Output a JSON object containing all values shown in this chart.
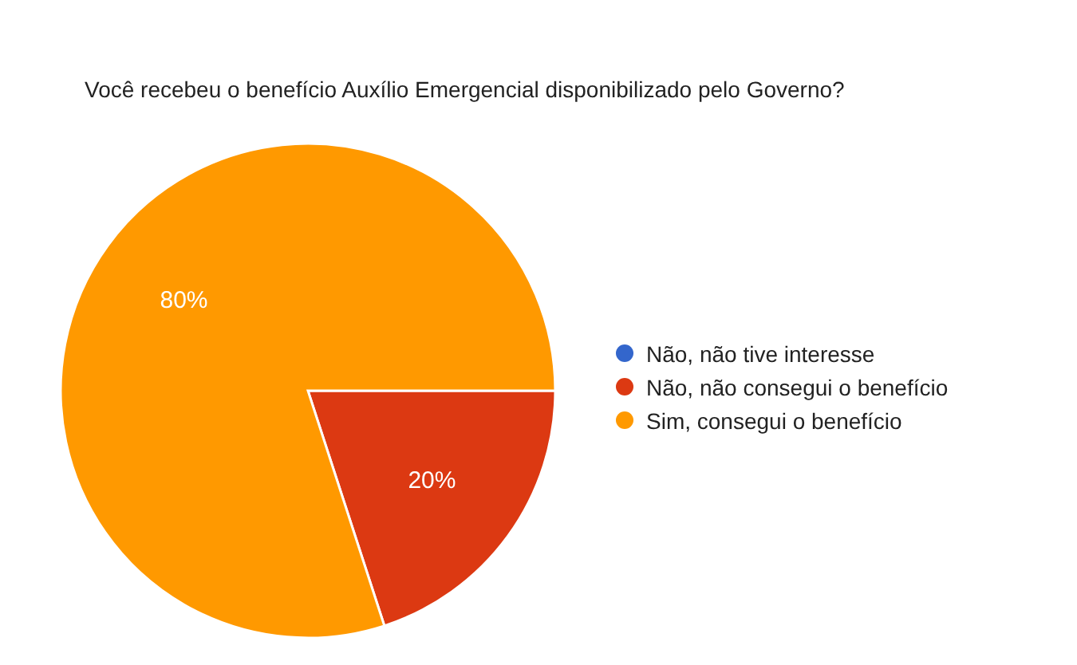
{
  "chart_data": {
    "type": "pie",
    "title": "Você recebeu o benefício Auxílio Emergencial disponibilizado pelo Governo?",
    "categories": [
      "Não, não tive interesse",
      "Não, não consegui o benefício",
      "Sim, consegui o benefício"
    ],
    "values": [
      0,
      20,
      80
    ],
    "colors": [
      "#3366cc",
      "#dc3912",
      "#ff9900"
    ],
    "value_labels": [
      null,
      "20%",
      "80%"
    ],
    "legend": "right"
  }
}
